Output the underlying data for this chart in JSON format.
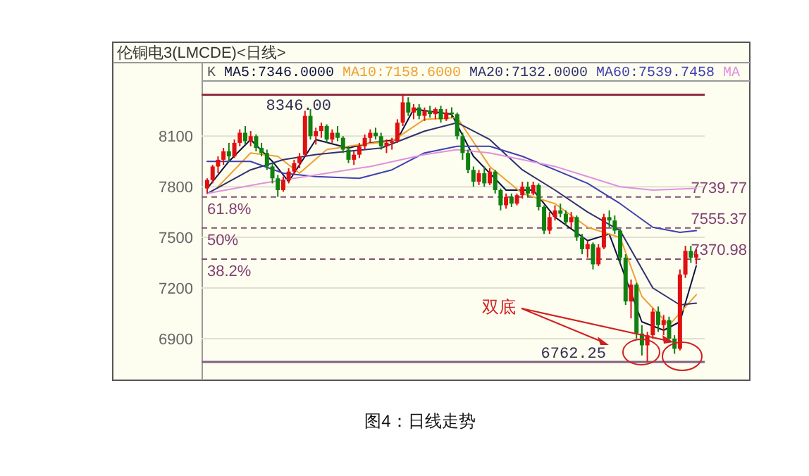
{
  "chart_data": {
    "type": "candlestick",
    "title": "伦铜电3(LMCDE)<日线>",
    "categories": [
      null,
      null,
      null,
      null,
      null,
      null,
      null,
      null,
      null,
      null,
      null,
      null,
      null,
      null,
      null,
      null,
      null,
      null,
      null,
      null,
      null,
      null,
      null,
      null,
      null,
      null,
      null,
      null,
      null,
      null,
      null,
      null,
      null,
      null,
      null,
      null,
      null,
      null,
      null,
      null,
      null,
      null,
      null,
      null,
      null,
      null,
      null,
      null,
      null,
      null,
      null,
      null,
      null,
      null,
      null,
      null,
      null,
      null,
      null,
      null,
      null,
      null,
      null,
      null,
      null,
      null,
      null,
      null,
      null,
      null,
      null,
      null,
      null,
      null,
      null,
      null,
      null,
      null,
      null,
      null,
      null,
      null,
      null,
      null,
      null,
      null,
      null,
      null,
      null,
      null,
      null
    ],
    "ohlc": [
      [
        7790,
        7850,
        7760,
        7840
      ],
      [
        7840,
        7930,
        7820,
        7920
      ],
      [
        7920,
        7980,
        7880,
        7960
      ],
      [
        7960,
        8030,
        7930,
        8010
      ],
      [
        8010,
        8060,
        7950,
        7980
      ],
      [
        7980,
        8080,
        7970,
        8060
      ],
      [
        8060,
        8140,
        8040,
        8120
      ],
      [
        8120,
        8160,
        8050,
        8070
      ],
      [
        8070,
        8130,
        8040,
        8100
      ],
      [
        8100,
        8110,
        8010,
        8030
      ],
      [
        8030,
        8060,
        7980,
        8000
      ],
      [
        8000,
        8020,
        7900,
        7920
      ],
      [
        7920,
        7940,
        7820,
        7850
      ],
      [
        7850,
        7870,
        7740,
        7780
      ],
      [
        7780,
        7860,
        7770,
        7840
      ],
      [
        7840,
        7910,
        7820,
        7890
      ],
      [
        7890,
        7960,
        7870,
        7940
      ],
      [
        7940,
        8000,
        7910,
        7980
      ],
      [
        7990,
        8250,
        7980,
        8220
      ],
      [
        8220,
        8260,
        8080,
        8100
      ],
      [
        8100,
        8150,
        8050,
        8130
      ],
      [
        8130,
        8180,
        8090,
        8160
      ],
      [
        8160,
        8170,
        8060,
        8080
      ],
      [
        8080,
        8140,
        8060,
        8120
      ],
      [
        8120,
        8160,
        8070,
        8090
      ],
      [
        8090,
        8100,
        8000,
        8020
      ],
      [
        8020,
        8040,
        7940,
        7960
      ],
      [
        7960,
        8010,
        7930,
        7990
      ],
      [
        7990,
        8060,
        7970,
        8040
      ],
      [
        8040,
        8110,
        8020,
        8090
      ],
      [
        8090,
        8140,
        8060,
        8120
      ],
      [
        8120,
        8150,
        8080,
        8100
      ],
      [
        8100,
        8120,
        8020,
        8040
      ],
      [
        8040,
        8080,
        8000,
        8060
      ],
      [
        8060,
        8090,
        8020,
        8070
      ],
      [
        8070,
        8200,
        8060,
        8180
      ],
      [
        8180,
        8346,
        8160,
        8300
      ],
      [
        8300,
        8330,
        8220,
        8240
      ],
      [
        8240,
        8290,
        8200,
        8270
      ],
      [
        8270,
        8290,
        8200,
        8220
      ],
      [
        8220,
        8270,
        8190,
        8250
      ],
      [
        8250,
        8280,
        8210,
        8230
      ],
      [
        8230,
        8270,
        8200,
        8260
      ],
      [
        8260,
        8280,
        8180,
        8200
      ],
      [
        8200,
        8260,
        8190,
        8240
      ],
      [
        8240,
        8270,
        8210,
        8230
      ],
      [
        8230,
        8240,
        8080,
        8100
      ],
      [
        8100,
        8120,
        7960,
        8000
      ],
      [
        8000,
        8020,
        7880,
        7900
      ],
      [
        7900,
        7920,
        7800,
        7830
      ],
      [
        7830,
        7900,
        7810,
        7880
      ],
      [
        7880,
        7920,
        7800,
        7820
      ],
      [
        7820,
        7910,
        7810,
        7890
      ],
      [
        7890,
        7900,
        7760,
        7780
      ],
      [
        7780,
        7790,
        7660,
        7690
      ],
      [
        7690,
        7760,
        7670,
        7740
      ],
      [
        7740,
        7760,
        7680,
        7700
      ],
      [
        7700,
        7760,
        7690,
        7750
      ],
      [
        7750,
        7830,
        7730,
        7800
      ],
      [
        7800,
        7830,
        7740,
        7760
      ],
      [
        7760,
        7830,
        7750,
        7810
      ],
      [
        7810,
        7820,
        7660,
        7680
      ],
      [
        7680,
        7690,
        7520,
        7540
      ],
      [
        7540,
        7650,
        7520,
        7620
      ],
      [
        7620,
        7690,
        7600,
        7660
      ],
      [
        7660,
        7700,
        7620,
        7640
      ],
      [
        7640,
        7660,
        7570,
        7590
      ],
      [
        7590,
        7650,
        7560,
        7620
      ],
      [
        7620,
        7630,
        7480,
        7500
      ],
      [
        7500,
        7520,
        7400,
        7430
      ],
      [
        7430,
        7480,
        7380,
        7460
      ],
      [
        7460,
        7470,
        7310,
        7340
      ],
      [
        7340,
        7460,
        7330,
        7440
      ],
      [
        7440,
        7640,
        7430,
        7620
      ],
      [
        7620,
        7660,
        7560,
        7600
      ],
      [
        7600,
        7630,
        7520,
        7540
      ],
      [
        7540,
        7550,
        7350,
        7380
      ],
      [
        7380,
        7400,
        7100,
        7120
      ],
      [
        7120,
        7250,
        7020,
        7220
      ],
      [
        7220,
        7230,
        6900,
        6930
      ],
      [
        6930,
        6980,
        6800,
        6860
      ],
      [
        6860,
        6940,
        6762.25,
        6920
      ],
      [
        6920,
        7080,
        6900,
        7060
      ],
      [
        7060,
        7090,
        6940,
        6980
      ],
      [
        6980,
        7040,
        6920,
        7010
      ],
      [
        7010,
        7030,
        6880,
        6900
      ],
      [
        6900,
        6920,
        6810,
        6840
      ],
      [
        6840,
        7310,
        6830,
        7280
      ],
      [
        7280,
        7450,
        7260,
        7420
      ],
      [
        7420,
        7450,
        7350,
        7380
      ],
      [
        7380,
        7430,
        7340,
        7400
      ]
    ],
    "series": [
      {
        "name": "MA5:7346.0000",
        "type": "line",
        "color": "#101040",
        "values": [
          7790,
          null,
          null,
          null,
          7950,
          null,
          null,
          null,
          8080,
          null,
          null,
          null,
          7950,
          null,
          null,
          7830,
          null,
          null,
          null,
          null,
          8080,
          null,
          null,
          null,
          null,
          null,
          8030,
          null,
          null,
          null,
          8060,
          null,
          null,
          null,
          null,
          8080,
          null,
          null,
          8260,
          null,
          null,
          null,
          null,
          null,
          null,
          8230,
          null,
          null,
          null,
          7980,
          null,
          null,
          null,
          null,
          null,
          7780,
          null,
          null,
          null,
          null,
          7780,
          null,
          null,
          null,
          7620,
          null,
          null,
          null,
          null,
          null,
          7480,
          null,
          null,
          null,
          7520,
          null,
          null,
          null,
          null,
          null,
          7000,
          null,
          null,
          null,
          6950,
          null,
          null,
          7000,
          null,
          null,
          7330
        ]
      },
      {
        "name": "MA10:7158.6000",
        "type": "line",
        "color": "#f0a030",
        "values": [
          null,
          null,
          7800,
          null,
          null,
          null,
          null,
          null,
          8000,
          null,
          null,
          null,
          null,
          7980,
          null,
          null,
          null,
          7880,
          null,
          null,
          null,
          null,
          8020,
          null,
          null,
          null,
          null,
          null,
          8050,
          null,
          null,
          null,
          null,
          null,
          8070,
          null,
          null,
          null,
          null,
          null,
          8200,
          null,
          null,
          null,
          null,
          null,
          8210,
          null,
          null,
          null,
          null,
          null,
          7920,
          null,
          null,
          null,
          null,
          null,
          7760,
          null,
          null,
          null,
          null,
          null,
          7700,
          null,
          null,
          null,
          null,
          null,
          7560,
          null,
          null,
          null,
          null,
          null,
          7500,
          null,
          null,
          null,
          7150,
          null,
          null,
          null,
          null,
          6980,
          null,
          null,
          null,
          null,
          7160
        ]
      },
      {
        "name": "MA20:7132.0000",
        "type": "line",
        "color": "#303070",
        "values": [
          7760,
          null,
          null,
          null,
          null,
          null,
          null,
          null,
          7900,
          null,
          null,
          null,
          null,
          null,
          7960,
          null,
          null,
          null,
          null,
          null,
          7990,
          null,
          null,
          null,
          null,
          null,
          8010,
          null,
          null,
          null,
          null,
          null,
          8030,
          null,
          null,
          null,
          null,
          null,
          null,
          null,
          8130,
          null,
          null,
          null,
          null,
          null,
          8180,
          null,
          null,
          null,
          null,
          null,
          8080,
          null,
          null,
          null,
          null,
          null,
          7900,
          null,
          null,
          null,
          null,
          null,
          7780,
          null,
          null,
          null,
          null,
          null,
          7650,
          null,
          null,
          null,
          null,
          null,
          7540,
          null,
          null,
          null,
          null,
          null,
          7200,
          null,
          null,
          null,
          null,
          7100,
          null,
          null,
          7110
        ]
      },
      {
        "name": "MA60:7539.7458",
        "type": "line",
        "color": "#4040b0",
        "values": [
          7950,
          null,
          null,
          null,
          null,
          null,
          null,
          null,
          7950,
          null,
          null,
          null,
          null,
          null,
          7880,
          null,
          null,
          null,
          null,
          null,
          7860,
          null,
          null,
          null,
          null,
          null,
          null,
          null,
          7850,
          null,
          null,
          null,
          null,
          null,
          7900,
          null,
          null,
          null,
          null,
          null,
          8000,
          null,
          null,
          null,
          null,
          null,
          8040,
          null,
          null,
          null,
          null,
          null,
          8040,
          null,
          null,
          null,
          null,
          null,
          7980,
          null,
          null,
          null,
          null,
          null,
          7900,
          null,
          null,
          null,
          null,
          null,
          7820,
          null,
          null,
          null,
          null,
          null,
          7700,
          null,
          null,
          null,
          null,
          null,
          7560,
          null,
          null,
          null,
          null,
          7530,
          null,
          null,
          7540
        ]
      },
      {
        "name": "MA",
        "type": "line",
        "color": "#e090e0",
        "values": [
          7760,
          null,
          null,
          null,
          null,
          null,
          null,
          null,
          null,
          null,
          7820,
          null,
          null,
          null,
          null,
          null,
          null,
          null,
          null,
          null,
          7870,
          null,
          null,
          null,
          null,
          null,
          null,
          null,
          null,
          null,
          7920,
          null,
          null,
          null,
          null,
          null,
          null,
          null,
          null,
          null,
          7990,
          null,
          null,
          null,
          null,
          null,
          8020,
          null,
          null,
          null,
          null,
          null,
          8000,
          null,
          null,
          null,
          null,
          null,
          7960,
          null,
          null,
          null,
          null,
          null,
          7920,
          null,
          null,
          null,
          null,
          null,
          7860,
          null,
          null,
          null,
          null,
          null,
          7800,
          null,
          null,
          null,
          null,
          null,
          7780,
          null,
          null,
          null,
          null,
          null,
          null,
          null,
          7790
        ]
      }
    ],
    "legend_title": "K",
    "legend": "top",
    "ylim": [
      6670,
      8406
    ],
    "yticks": [
      6900,
      7200,
      7500,
      7800,
      8100
    ],
    "grid": "y",
    "ref_lines": [
      {
        "axis": "y",
        "value": 8346,
        "label": "8346.00",
        "color": "#903040",
        "line_style": "solid"
      },
      {
        "axis": "y",
        "value": 6762.25,
        "label": "6762.25",
        "color": "#806080",
        "line_style": "solid"
      },
      {
        "axis": "y",
        "value": 7739.77,
        "label": "7739.77",
        "color": "#805070",
        "line_style": "dashed"
      },
      {
        "axis": "y",
        "value": 7555.37,
        "label": "7555.37",
        "color": "#805070",
        "line_style": "dashed"
      },
      {
        "axis": "y",
        "value": 7370.98,
        "label": "7370.98",
        "color": "#805070",
        "line_style": "dashed"
      }
    ],
    "annotations": [
      "61.8%",
      "50%",
      "38.2%",
      "双底",
      "图4：日线走势"
    ]
  }
}
